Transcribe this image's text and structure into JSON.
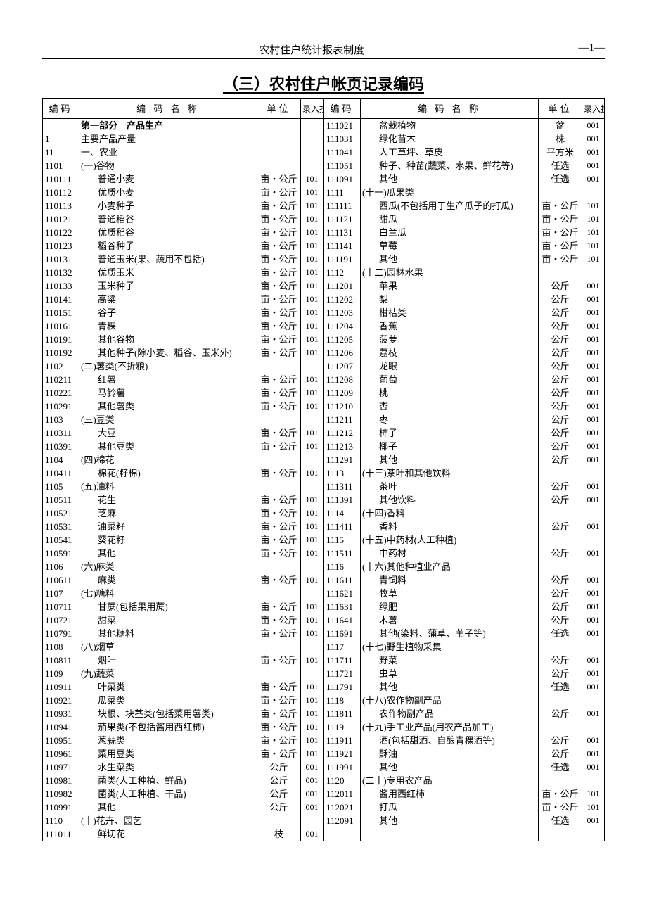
{
  "header": {
    "center": "农村住户统计报表制度",
    "right": "—1—"
  },
  "title": "（三）农村住户帐页记录编码",
  "columns": {
    "code": "编码",
    "name": "编 码 名 称",
    "unit": "单位",
    "ctrl": "录入控制码"
  },
  "left": [
    {
      "code": "",
      "name": "第一部分　产品生产",
      "unit": "",
      "ctrl": "",
      "bold": true,
      "indent": 0
    },
    {
      "code": "1",
      "name": "主要产品产量",
      "unit": "",
      "ctrl": "",
      "indent": 0
    },
    {
      "code": "11",
      "name": "一、农业",
      "unit": "",
      "ctrl": "",
      "indent": 0
    },
    {
      "code": "1101",
      "name": "(一)谷物",
      "unit": "",
      "ctrl": "",
      "indent": 0
    },
    {
      "code": "110111",
      "name": "普通小麦",
      "unit": "亩・公斤",
      "ctrl": "101",
      "indent": 1
    },
    {
      "code": "110112",
      "name": "优质小麦",
      "unit": "亩・公斤",
      "ctrl": "101",
      "indent": 1
    },
    {
      "code": "110113",
      "name": "小麦种子",
      "unit": "亩・公斤",
      "ctrl": "101",
      "indent": 1
    },
    {
      "code": "110121",
      "name": "普通稻谷",
      "unit": "亩・公斤",
      "ctrl": "101",
      "indent": 1
    },
    {
      "code": "110122",
      "name": "优质稻谷",
      "unit": "亩・公斤",
      "ctrl": "101",
      "indent": 1
    },
    {
      "code": "110123",
      "name": "稻谷种子",
      "unit": "亩・公斤",
      "ctrl": "101",
      "indent": 1
    },
    {
      "code": "110131",
      "name": "普通玉米(果、蔬用不包括)",
      "unit": "亩・公斤",
      "ctrl": "101",
      "indent": 1
    },
    {
      "code": "110132",
      "name": "优质玉米",
      "unit": "亩・公斤",
      "ctrl": "101",
      "indent": 1
    },
    {
      "code": "110133",
      "name": "玉米种子",
      "unit": "亩・公斤",
      "ctrl": "101",
      "indent": 1
    },
    {
      "code": "110141",
      "name": "高粱",
      "unit": "亩・公斤",
      "ctrl": "101",
      "indent": 1
    },
    {
      "code": "110151",
      "name": "谷子",
      "unit": "亩・公斤",
      "ctrl": "101",
      "indent": 1
    },
    {
      "code": "110161",
      "name": "青稞",
      "unit": "亩・公斤",
      "ctrl": "101",
      "indent": 1
    },
    {
      "code": "110191",
      "name": "其他谷物",
      "unit": "亩・公斤",
      "ctrl": "101",
      "indent": 1
    },
    {
      "code": "110192",
      "name": "其他种子(除小麦、稻谷、玉米外)",
      "unit": "亩・公斤",
      "ctrl": "101",
      "indent": 1
    },
    {
      "code": "1102",
      "name": "(二)薯类(不折粮)",
      "unit": "",
      "ctrl": "",
      "indent": 0
    },
    {
      "code": "110211",
      "name": "红薯",
      "unit": "亩・公斤",
      "ctrl": "101",
      "indent": 1
    },
    {
      "code": "110221",
      "name": "马铃薯",
      "unit": "亩・公斤",
      "ctrl": "101",
      "indent": 1
    },
    {
      "code": "110291",
      "name": "其他薯类",
      "unit": "亩・公斤",
      "ctrl": "101",
      "indent": 1
    },
    {
      "code": "1103",
      "name": "(三)豆类",
      "unit": "",
      "ctrl": "",
      "indent": 0
    },
    {
      "code": "110311",
      "name": "大豆",
      "unit": "亩・公斤",
      "ctrl": "101",
      "indent": 1
    },
    {
      "code": "110391",
      "name": "其他豆类",
      "unit": "亩・公斤",
      "ctrl": "101",
      "indent": 1
    },
    {
      "code": "1104",
      "name": "(四)棉花",
      "unit": "",
      "ctrl": "",
      "indent": 0
    },
    {
      "code": "110411",
      "name": "棉花(籽棉)",
      "unit": "亩・公斤",
      "ctrl": "101",
      "indent": 1
    },
    {
      "code": "1105",
      "name": "(五)油料",
      "unit": "",
      "ctrl": "",
      "indent": 0
    },
    {
      "code": "110511",
      "name": "花生",
      "unit": "亩・公斤",
      "ctrl": "101",
      "indent": 1
    },
    {
      "code": "110521",
      "name": "芝麻",
      "unit": "亩・公斤",
      "ctrl": "101",
      "indent": 1
    },
    {
      "code": "110531",
      "name": "油菜籽",
      "unit": "亩・公斤",
      "ctrl": "101",
      "indent": 1
    },
    {
      "code": "110541",
      "name": "葵花籽",
      "unit": "亩・公斤",
      "ctrl": "101",
      "indent": 1
    },
    {
      "code": "110591",
      "name": "其他",
      "unit": "亩・公斤",
      "ctrl": "101",
      "indent": 1
    },
    {
      "code": "1106",
      "name": "(六)麻类",
      "unit": "",
      "ctrl": "",
      "indent": 0
    },
    {
      "code": "110611",
      "name": "麻类",
      "unit": "亩・公斤",
      "ctrl": "101",
      "indent": 1
    },
    {
      "code": "1107",
      "name": "(七)糖料",
      "unit": "",
      "ctrl": "",
      "indent": 0
    },
    {
      "code": "110711",
      "name": "甘蔗(包括果用蔗)",
      "unit": "亩・公斤",
      "ctrl": "101",
      "indent": 1
    },
    {
      "code": "110721",
      "name": "甜菜",
      "unit": "亩・公斤",
      "ctrl": "101",
      "indent": 1
    },
    {
      "code": "110791",
      "name": "其他糖料",
      "unit": "亩・公斤",
      "ctrl": "101",
      "indent": 1
    },
    {
      "code": "1108",
      "name": "(八)烟草",
      "unit": "",
      "ctrl": "",
      "indent": 0
    },
    {
      "code": "110811",
      "name": "烟叶",
      "unit": "亩・公斤",
      "ctrl": "101",
      "indent": 1
    },
    {
      "code": "1109",
      "name": "(九)蔬菜",
      "unit": "",
      "ctrl": "",
      "indent": 0
    },
    {
      "code": "110911",
      "name": "叶菜类",
      "unit": "亩・公斤",
      "ctrl": "101",
      "indent": 1
    },
    {
      "code": "110921",
      "name": "瓜菜类",
      "unit": "亩・公斤",
      "ctrl": "101",
      "indent": 1
    },
    {
      "code": "110931",
      "name": "块根、块茎类(包括菜用薯类)",
      "unit": "亩・公斤",
      "ctrl": "101",
      "indent": 1
    },
    {
      "code": "110941",
      "name": "茄果类(不包括酱用西红柿)",
      "unit": "亩・公斤",
      "ctrl": "101",
      "indent": 1
    },
    {
      "code": "110951",
      "name": "葱蒜类",
      "unit": "亩・公斤",
      "ctrl": "101",
      "indent": 1
    },
    {
      "code": "110961",
      "name": "菜用豆类",
      "unit": "亩・公斤",
      "ctrl": "101",
      "indent": 1
    },
    {
      "code": "110971",
      "name": "水生菜类",
      "unit": "公斤",
      "ctrl": "001",
      "indent": 1
    },
    {
      "code": "110981",
      "name": "菌类(人工种植、鲜品)",
      "unit": "公斤",
      "ctrl": "001",
      "indent": 1
    },
    {
      "code": "110982",
      "name": "菌类(人工种植、干品)",
      "unit": "公斤",
      "ctrl": "001",
      "indent": 1
    },
    {
      "code": "110991",
      "name": "其他",
      "unit": "公斤",
      "ctrl": "001",
      "indent": 1
    },
    {
      "code": "1110",
      "name": "(十)花卉、园艺",
      "unit": "",
      "ctrl": "",
      "indent": 0
    },
    {
      "code": "111011",
      "name": "鲜切花",
      "unit": "枝",
      "ctrl": "001",
      "indent": 1
    }
  ],
  "right": [
    {
      "code": "111021",
      "name": "盆栽植物",
      "unit": "盆",
      "ctrl": "001",
      "indent": 1
    },
    {
      "code": "111031",
      "name": "绿化苗木",
      "unit": "株",
      "ctrl": "001",
      "indent": 1
    },
    {
      "code": "111041",
      "name": "人工草坪、草皮",
      "unit": "平方米",
      "ctrl": "001",
      "indent": 1
    },
    {
      "code": "111051",
      "name": "种子、种苗(蔬菜、水果、鲜花等)",
      "unit": "任选",
      "ctrl": "001",
      "indent": 1
    },
    {
      "code": "111091",
      "name": "其他",
      "unit": "任选",
      "ctrl": "001",
      "indent": 1
    },
    {
      "code": "1111",
      "name": "(十一)瓜果类",
      "unit": "",
      "ctrl": "",
      "indent": 0
    },
    {
      "code": "111111",
      "name": "西瓜(不包括用于生产瓜子的打瓜)",
      "unit": "亩・公斤",
      "ctrl": "101",
      "indent": 1
    },
    {
      "code": "111121",
      "name": "甜瓜",
      "unit": "亩・公斤",
      "ctrl": "101",
      "indent": 1
    },
    {
      "code": "111131",
      "name": "白兰瓜",
      "unit": "亩・公斤",
      "ctrl": "101",
      "indent": 1
    },
    {
      "code": "111141",
      "name": "草莓",
      "unit": "亩・公斤",
      "ctrl": "101",
      "indent": 1
    },
    {
      "code": "111191",
      "name": "其他",
      "unit": "亩・公斤",
      "ctrl": "101",
      "indent": 1
    },
    {
      "code": "1112",
      "name": "(十二)园林水果",
      "unit": "",
      "ctrl": "",
      "indent": 0
    },
    {
      "code": "111201",
      "name": "苹果",
      "unit": "公斤",
      "ctrl": "001",
      "indent": 1
    },
    {
      "code": "111202",
      "name": "梨",
      "unit": "公斤",
      "ctrl": "001",
      "indent": 1
    },
    {
      "code": "111203",
      "name": "柑桔类",
      "unit": "公斤",
      "ctrl": "001",
      "indent": 1
    },
    {
      "code": "111204",
      "name": "香蕉",
      "unit": "公斤",
      "ctrl": "001",
      "indent": 1
    },
    {
      "code": "111205",
      "name": "菠萝",
      "unit": "公斤",
      "ctrl": "001",
      "indent": 1
    },
    {
      "code": "111206",
      "name": "荔枝",
      "unit": "公斤",
      "ctrl": "001",
      "indent": 1
    },
    {
      "code": "111207",
      "name": "龙眼",
      "unit": "公斤",
      "ctrl": "001",
      "indent": 1
    },
    {
      "code": "111208",
      "name": "葡萄",
      "unit": "公斤",
      "ctrl": "001",
      "indent": 1
    },
    {
      "code": "111209",
      "name": "桃",
      "unit": "公斤",
      "ctrl": "001",
      "indent": 1
    },
    {
      "code": "111210",
      "name": "杏",
      "unit": "公斤",
      "ctrl": "001",
      "indent": 1
    },
    {
      "code": "111211",
      "name": "枣",
      "unit": "公斤",
      "ctrl": "001",
      "indent": 1
    },
    {
      "code": "111212",
      "name": "柿子",
      "unit": "公斤",
      "ctrl": "001",
      "indent": 1
    },
    {
      "code": "111213",
      "name": "椰子",
      "unit": "公斤",
      "ctrl": "001",
      "indent": 1
    },
    {
      "code": "111291",
      "name": "其他",
      "unit": "公斤",
      "ctrl": "001",
      "indent": 1
    },
    {
      "code": "1113",
      "name": "(十三)茶叶和其他饮料",
      "unit": "",
      "ctrl": "",
      "indent": 0
    },
    {
      "code": "111311",
      "name": "茶叶",
      "unit": "公斤",
      "ctrl": "001",
      "indent": 1
    },
    {
      "code": "111391",
      "name": "其他饮料",
      "unit": "公斤",
      "ctrl": "001",
      "indent": 1
    },
    {
      "code": "1114",
      "name": "(十四)香料",
      "unit": "",
      "ctrl": "",
      "indent": 0
    },
    {
      "code": "111411",
      "name": "香料",
      "unit": "公斤",
      "ctrl": "001",
      "indent": 1
    },
    {
      "code": "1115",
      "name": "(十五)中药材(人工种植)",
      "unit": "",
      "ctrl": "",
      "indent": 0
    },
    {
      "code": "111511",
      "name": "中药材",
      "unit": "公斤",
      "ctrl": "001",
      "indent": 1
    },
    {
      "code": "1116",
      "name": "(十六)其他种植业产品",
      "unit": "",
      "ctrl": "",
      "indent": 0
    },
    {
      "code": "111611",
      "name": "青饲料",
      "unit": "公斤",
      "ctrl": "001",
      "indent": 1
    },
    {
      "code": "111621",
      "name": "牧草",
      "unit": "公斤",
      "ctrl": "001",
      "indent": 1
    },
    {
      "code": "111631",
      "name": "绿肥",
      "unit": "公斤",
      "ctrl": "001",
      "indent": 1
    },
    {
      "code": "111641",
      "name": "木薯",
      "unit": "公斤",
      "ctrl": "001",
      "indent": 1
    },
    {
      "code": "111691",
      "name": "其他(染料、蒲草、苇子等)",
      "unit": "任选",
      "ctrl": "001",
      "indent": 1
    },
    {
      "code": "1117",
      "name": "(十七)野生植物采集",
      "unit": "",
      "ctrl": "",
      "indent": 0
    },
    {
      "code": "111711",
      "name": "野菜",
      "unit": "公斤",
      "ctrl": "001",
      "indent": 1
    },
    {
      "code": "111721",
      "name": "虫草",
      "unit": "公斤",
      "ctrl": "001",
      "indent": 1
    },
    {
      "code": "111791",
      "name": "其他",
      "unit": "任选",
      "ctrl": "001",
      "indent": 1
    },
    {
      "code": "1118",
      "name": "(十八)农作物副产品",
      "unit": "",
      "ctrl": "",
      "indent": 0
    },
    {
      "code": "111811",
      "name": "农作物副产品",
      "unit": "公斤",
      "ctrl": "001",
      "indent": 1
    },
    {
      "code": "1119",
      "name": "(十九)手工业产品(用农产品加工)",
      "unit": "",
      "ctrl": "",
      "indent": 0
    },
    {
      "code": "111911",
      "name": "酒(包括甜酒、自酿青稞酒等)",
      "unit": "公斤",
      "ctrl": "001",
      "indent": 1
    },
    {
      "code": "111921",
      "name": "酥油",
      "unit": "公斤",
      "ctrl": "001",
      "indent": 1
    },
    {
      "code": "111991",
      "name": "其他",
      "unit": "任选",
      "ctrl": "001",
      "indent": 1
    },
    {
      "code": "1120",
      "name": "(二十)专用农产品",
      "unit": "",
      "ctrl": "",
      "indent": 0
    },
    {
      "code": "112011",
      "name": "酱用西红柿",
      "unit": "亩・公斤",
      "ctrl": "101",
      "indent": 1
    },
    {
      "code": "112021",
      "name": "打瓜",
      "unit": "亩・公斤",
      "ctrl": "101",
      "indent": 1
    },
    {
      "code": "112091",
      "name": "其他",
      "unit": "任选",
      "ctrl": "001",
      "indent": 1
    },
    {
      "code": "",
      "name": "",
      "unit": "",
      "ctrl": "",
      "indent": 0
    }
  ]
}
